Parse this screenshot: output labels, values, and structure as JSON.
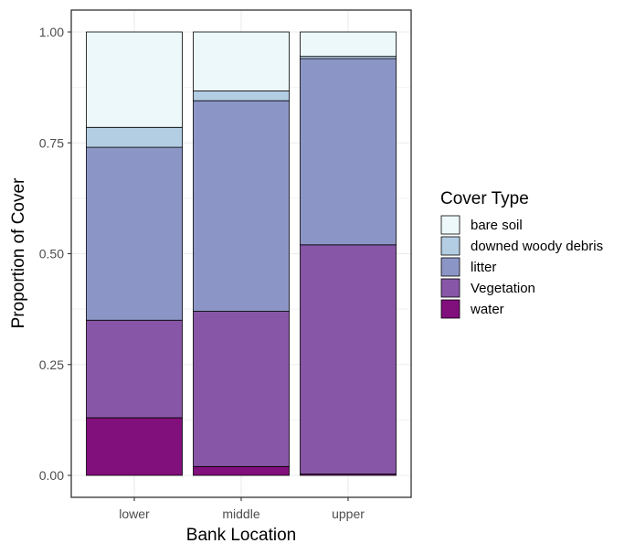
{
  "chart_data": {
    "type": "bar",
    "stacked": true,
    "categories": [
      "lower",
      "middle",
      "upper"
    ],
    "series": [
      {
        "name": "water",
        "color": "#810f7c",
        "values": [
          0.13,
          0.02,
          0.003
        ]
      },
      {
        "name": "Vegetation",
        "color": "#8856a7",
        "values": [
          0.22,
          0.35,
          0.517
        ]
      },
      {
        "name": "litter",
        "color": "#8c96c6",
        "values": [
          0.39,
          0.475,
          0.42
        ]
      },
      {
        "name": "downed woody debris",
        "color": "#b3cde3",
        "values": [
          0.045,
          0.022,
          0.005
        ]
      },
      {
        "name": "bare soil",
        "color": "#edf8fb",
        "values": [
          0.215,
          0.133,
          0.055
        ]
      }
    ],
    "xlabel": "Bank Location",
    "ylabel": "Proportion of Cover",
    "ylim": [
      0,
      1
    ],
    "yticks": [
      "0.00",
      "0.25",
      "0.50",
      "0.75",
      "1.00"
    ],
    "grid": true,
    "legend": {
      "title": "Cover Type",
      "position": "right",
      "order": [
        "bare soil",
        "downed woody debris",
        "litter",
        "Vegetation",
        "water"
      ]
    }
  }
}
